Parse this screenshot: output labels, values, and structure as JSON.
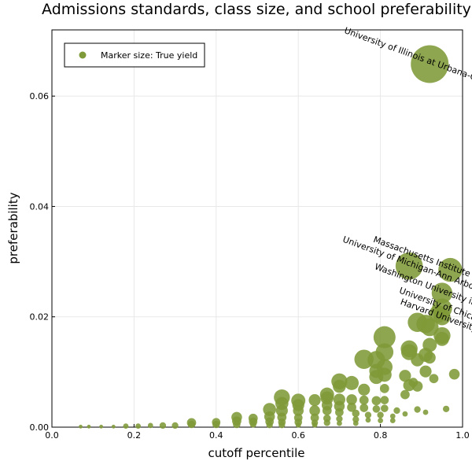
{
  "chart_data": {
    "type": "scatter",
    "title": "Admissions standards, class size, and school preferability",
    "xlabel": "cutoff percentile",
    "ylabel": "preferability",
    "xlim": [
      0,
      1
    ],
    "ylim": [
      0,
      0.072
    ],
    "xticks": [
      0.0,
      0.2,
      0.4,
      0.6,
      0.8,
      1.0
    ],
    "xtick_labels": [
      "0.0",
      "0.2",
      "0.4",
      "0.6",
      "0.8",
      "1.0"
    ],
    "yticks": [
      0.0,
      0.02,
      0.04,
      0.06
    ],
    "ytick_labels": [
      "0.00",
      "0.02",
      "0.04",
      "0.06"
    ],
    "grid": true,
    "legend": {
      "label": "Marker size: True yield",
      "position": "top-left"
    },
    "marker_color": "#7f9a38",
    "annotations": [
      {
        "text": "University of Illinois at Urbana-Champaign",
        "x": 0.92,
        "y": 0.0658
      },
      {
        "text": "Massachusetts Institute of Technology",
        "x": 0.97,
        "y": 0.0285
      },
      {
        "text": "University of Michigan-Ann Arbor",
        "x": 0.87,
        "y": 0.0292
      },
      {
        "text": "Washington University in St Louis",
        "x": 0.95,
        "y": 0.0242
      },
      {
        "text": "University of Chicago",
        "x": 0.95,
        "y": 0.0215
      },
      {
        "text": "Harvard University",
        "x": 0.94,
        "y": 0.0198
      }
    ],
    "points": [
      {
        "x": 0.92,
        "y": 0.0658,
        "yield": 1.0
      },
      {
        "x": 0.97,
        "y": 0.0285,
        "yield": 0.4
      },
      {
        "x": 0.87,
        "y": 0.0292,
        "yield": 0.52
      },
      {
        "x": 0.95,
        "y": 0.0243,
        "yield": 0.3
      },
      {
        "x": 0.95,
        "y": 0.0215,
        "yield": 0.28
      },
      {
        "x": 0.94,
        "y": 0.0205,
        "yield": 0.22
      },
      {
        "x": 0.95,
        "y": 0.02,
        "yield": 0.2
      },
      {
        "x": 0.81,
        "y": 0.0163,
        "yield": 0.34
      },
      {
        "x": 0.89,
        "y": 0.019,
        "yield": 0.26
      },
      {
        "x": 0.91,
        "y": 0.0187,
        "yield": 0.24
      },
      {
        "x": 0.92,
        "y": 0.0181,
        "yield": 0.22
      },
      {
        "x": 0.95,
        "y": 0.0166,
        "yield": 0.2
      },
      {
        "x": 0.95,
        "y": 0.016,
        "yield": 0.14
      },
      {
        "x": 0.92,
        "y": 0.0149,
        "yield": 0.14
      },
      {
        "x": 0.87,
        "y": 0.0142,
        "yield": 0.2
      },
      {
        "x": 0.87,
        "y": 0.0136,
        "yield": 0.18
      },
      {
        "x": 0.81,
        "y": 0.0136,
        "yield": 0.22
      },
      {
        "x": 0.91,
        "y": 0.0131,
        "yield": 0.14
      },
      {
        "x": 0.92,
        "y": 0.0126,
        "yield": 0.1
      },
      {
        "x": 0.76,
        "y": 0.0123,
        "yield": 0.26
      },
      {
        "x": 0.79,
        "y": 0.0122,
        "yield": 0.22
      },
      {
        "x": 0.89,
        "y": 0.0122,
        "yield": 0.12
      },
      {
        "x": 0.81,
        "y": 0.0109,
        "yield": 0.18
      },
      {
        "x": 0.79,
        "y": 0.0102,
        "yield": 0.14
      },
      {
        "x": 0.91,
        "y": 0.0101,
        "yield": 0.1
      },
      {
        "x": 0.79,
        "y": 0.0091,
        "yield": 0.14
      },
      {
        "x": 0.81,
        "y": 0.0095,
        "yield": 0.14
      },
      {
        "x": 0.86,
        "y": 0.0093,
        "yield": 0.1
      },
      {
        "x": 0.98,
        "y": 0.0096,
        "yield": 0.08
      },
      {
        "x": 0.93,
        "y": 0.0088,
        "yield": 0.06
      },
      {
        "x": 0.7,
        "y": 0.0083,
        "yield": 0.18
      },
      {
        "x": 0.73,
        "y": 0.008,
        "yield": 0.14
      },
      {
        "x": 0.7,
        "y": 0.0074,
        "yield": 0.12
      },
      {
        "x": 0.76,
        "y": 0.0068,
        "yield": 0.1
      },
      {
        "x": 0.81,
        "y": 0.007,
        "yield": 0.06
      },
      {
        "x": 0.87,
        "y": 0.0076,
        "yield": 0.1
      },
      {
        "x": 0.89,
        "y": 0.0074,
        "yield": 0.08
      },
      {
        "x": 0.88,
        "y": 0.0081,
        "yield": 0.06
      },
      {
        "x": 0.67,
        "y": 0.0059,
        "yield": 0.14
      },
      {
        "x": 0.67,
        "y": 0.0053,
        "yield": 0.12
      },
      {
        "x": 0.7,
        "y": 0.005,
        "yield": 0.1
      },
      {
        "x": 0.73,
        "y": 0.005,
        "yield": 0.08
      },
      {
        "x": 0.76,
        "y": 0.0049,
        "yield": 0.06
      },
      {
        "x": 0.79,
        "y": 0.0048,
        "yield": 0.06
      },
      {
        "x": 0.81,
        "y": 0.0049,
        "yield": 0.05
      },
      {
        "x": 0.86,
        "y": 0.0059,
        "yield": 0.06
      },
      {
        "x": 0.56,
        "y": 0.0054,
        "yield": 0.18
      },
      {
        "x": 0.6,
        "y": 0.0048,
        "yield": 0.14
      },
      {
        "x": 0.56,
        "y": 0.0043,
        "yield": 0.12
      },
      {
        "x": 0.6,
        "y": 0.004,
        "yield": 0.1
      },
      {
        "x": 0.64,
        "y": 0.0049,
        "yield": 0.1
      },
      {
        "x": 0.67,
        "y": 0.004,
        "yield": 0.08
      },
      {
        "x": 0.7,
        "y": 0.0038,
        "yield": 0.08
      },
      {
        "x": 0.73,
        "y": 0.0036,
        "yield": 0.06
      },
      {
        "x": 0.76,
        "y": 0.0035,
        "yield": 0.05
      },
      {
        "x": 0.79,
        "y": 0.0033,
        "yield": 0.04
      },
      {
        "x": 0.81,
        "y": 0.0034,
        "yield": 0.04
      },
      {
        "x": 0.84,
        "y": 0.003,
        "yield": 0.03
      },
      {
        "x": 0.89,
        "y": 0.0032,
        "yield": 0.03
      },
      {
        "x": 0.96,
        "y": 0.0033,
        "yield": 0.03
      },
      {
        "x": 0.53,
        "y": 0.0032,
        "yield": 0.12
      },
      {
        "x": 0.56,
        "y": 0.003,
        "yield": 0.1
      },
      {
        "x": 0.6,
        "y": 0.003,
        "yield": 0.08
      },
      {
        "x": 0.64,
        "y": 0.003,
        "yield": 0.08
      },
      {
        "x": 0.67,
        "y": 0.003,
        "yield": 0.06
      },
      {
        "x": 0.7,
        "y": 0.0027,
        "yield": 0.05
      },
      {
        "x": 0.74,
        "y": 0.0025,
        "yield": 0.04
      },
      {
        "x": 0.77,
        "y": 0.0022,
        "yield": 0.03
      },
      {
        "x": 0.8,
        "y": 0.0022,
        "yield": 0.03
      },
      {
        "x": 0.83,
        "y": 0.002,
        "yield": 0.02
      },
      {
        "x": 0.86,
        "y": 0.0024,
        "yield": 0.02
      },
      {
        "x": 0.91,
        "y": 0.0027,
        "yield": 0.02
      },
      {
        "x": 0.45,
        "y": 0.0018,
        "yield": 0.08
      },
      {
        "x": 0.49,
        "y": 0.0016,
        "yield": 0.06
      },
      {
        "x": 0.53,
        "y": 0.0019,
        "yield": 0.08
      },
      {
        "x": 0.56,
        "y": 0.0018,
        "yield": 0.06
      },
      {
        "x": 0.6,
        "y": 0.0017,
        "yield": 0.05
      },
      {
        "x": 0.64,
        "y": 0.0017,
        "yield": 0.05
      },
      {
        "x": 0.67,
        "y": 0.0016,
        "yield": 0.04
      },
      {
        "x": 0.7,
        "y": 0.0015,
        "yield": 0.03
      },
      {
        "x": 0.74,
        "y": 0.0014,
        "yield": 0.03
      },
      {
        "x": 0.77,
        "y": 0.0013,
        "yield": 0.02
      },
      {
        "x": 0.8,
        "y": 0.0012,
        "yield": 0.02
      },
      {
        "x": 0.83,
        "y": 0.0012,
        "yield": 0.02
      },
      {
        "x": 0.45,
        "y": 0.0011,
        "yield": 0.06
      },
      {
        "x": 0.4,
        "y": 0.0009,
        "yield": 0.05
      },
      {
        "x": 0.34,
        "y": 0.0008,
        "yield": 0.06
      },
      {
        "x": 0.49,
        "y": 0.001,
        "yield": 0.05
      },
      {
        "x": 0.53,
        "y": 0.001,
        "yield": 0.05
      },
      {
        "x": 0.56,
        "y": 0.0009,
        "yield": 0.04
      },
      {
        "x": 0.6,
        "y": 0.0009,
        "yield": 0.04
      },
      {
        "x": 0.64,
        "y": 0.0008,
        "yield": 0.03
      },
      {
        "x": 0.67,
        "y": 0.0008,
        "yield": 0.03
      },
      {
        "x": 0.7,
        "y": 0.0007,
        "yield": 0.02
      },
      {
        "x": 0.74,
        "y": 0.0007,
        "yield": 0.02
      },
      {
        "x": 0.34,
        "y": 0.0005,
        "yield": 0.04
      },
      {
        "x": 0.4,
        "y": 0.0005,
        "yield": 0.04
      },
      {
        "x": 0.45,
        "y": 0.0005,
        "yield": 0.04
      },
      {
        "x": 0.49,
        "y": 0.0005,
        "yield": 0.03
      },
      {
        "x": 0.53,
        "y": 0.0004,
        "yield": 0.03
      },
      {
        "x": 0.56,
        "y": 0.0004,
        "yield": 0.03
      },
      {
        "x": 0.6,
        "y": 0.0004,
        "yield": 0.02
      },
      {
        "x": 0.64,
        "y": 0.0004,
        "yield": 0.02
      },
      {
        "x": 0.27,
        "y": 0.0003,
        "yield": 0.03
      },
      {
        "x": 0.3,
        "y": 0.0003,
        "yield": 0.03
      },
      {
        "x": 0.24,
        "y": 0.0003,
        "yield": 0.02
      },
      {
        "x": 0.21,
        "y": 0.0002,
        "yield": 0.02
      },
      {
        "x": 0.18,
        "y": 0.0002,
        "yield": 0.02
      },
      {
        "x": 0.15,
        "y": 0.0001,
        "yield": 0.01
      },
      {
        "x": 0.12,
        "y": 0.0001,
        "yield": 0.01
      },
      {
        "x": 0.09,
        "y": 0.0001,
        "yield": 0.01
      },
      {
        "x": 0.07,
        "y": 0.0001,
        "yield": 0.01
      }
    ]
  }
}
